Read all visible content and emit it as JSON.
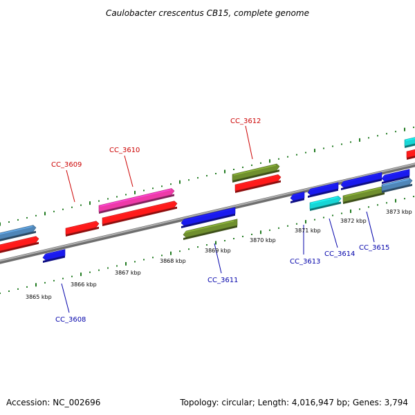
{
  "title": "Caulobacter crescentus CB15, complete genome",
  "footer": {
    "accession": "Accession: NC_002696",
    "summary": "Topology: circular; Length: 4,016,947 bp; Genes: 3,794"
  },
  "colors": {
    "backbone": "#8a8a8a",
    "ticks": "#1f7a1f",
    "label_top": "#cc0000",
    "label_bottom": "#0000aa",
    "red": "#ff1a1a",
    "magenta": "#ee3aa8",
    "olive": "#6f8f2e",
    "blue": "#1a1aee",
    "steel": "#4f86b8",
    "cyan": "#18d6d6"
  },
  "kbp_labels": [
    "3865 kbp",
    "3866 kbp",
    "3867 kbp",
    "3868 kbp",
    "3869 kbp",
    "3870 kbp",
    "3871 kbp",
    "3872 kbp",
    "3873 kbp"
  ],
  "gene_labels": [
    {
      "name": "CC_3608",
      "strand": "minus"
    },
    {
      "name": "CC_3609",
      "strand": "plus"
    },
    {
      "name": "CC_3610",
      "strand": "plus"
    },
    {
      "name": "CC_3611",
      "strand": "minus"
    },
    {
      "name": "CC_3612",
      "strand": "plus"
    },
    {
      "name": "CC_3613",
      "strand": "minus"
    },
    {
      "name": "CC_3614",
      "strand": "minus"
    },
    {
      "name": "CC_3615",
      "strand": "minus"
    }
  ]
}
